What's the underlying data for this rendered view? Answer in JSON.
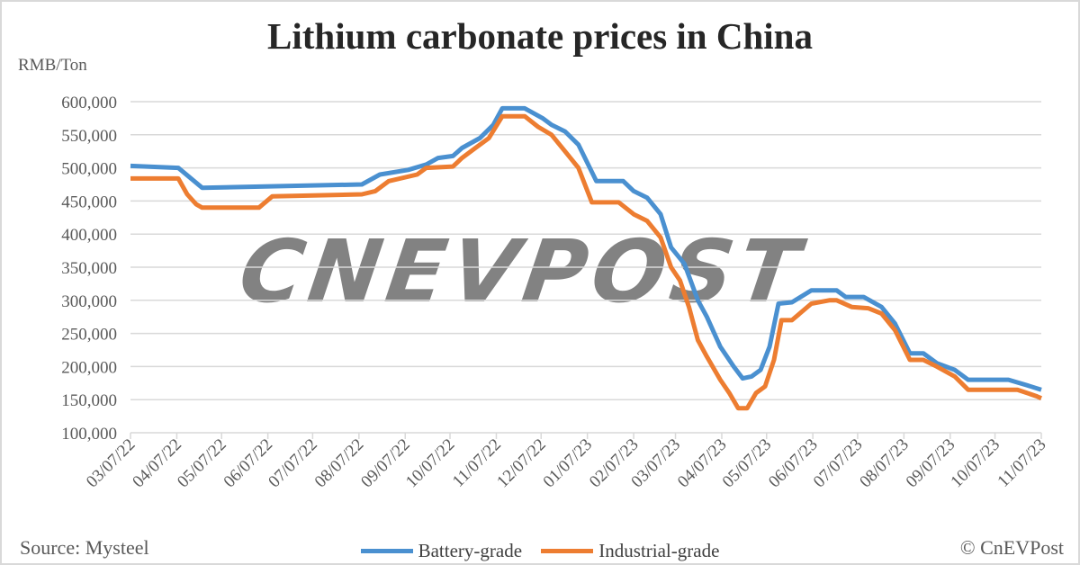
{
  "chart_data": {
    "type": "line",
    "title": "Lithium carbonate prices in China",
    "ylabel": "RMB/Ton",
    "ylim": [
      100000,
      600000
    ],
    "yticks": [
      "100,000",
      "150,000",
      "200,000",
      "250,000",
      "300,000",
      "350,000",
      "400,000",
      "450,000",
      "500,000",
      "550,000",
      "600,000"
    ],
    "ytick_values": [
      100000,
      150000,
      200000,
      250000,
      300000,
      350000,
      400000,
      450000,
      500000,
      550000,
      600000
    ],
    "xlim": [
      "2022-03-07",
      "2023-11-07"
    ],
    "xticks": [
      "03/07/22",
      "04/07/22",
      "05/07/22",
      "06/07/22",
      "07/07/22",
      "08/07/22",
      "09/07/22",
      "10/07/22",
      "11/07/22",
      "12/07/22",
      "01/07/23",
      "02/07/23",
      "03/07/23",
      "04/07/23",
      "05/07/23",
      "06/07/23",
      "07/07/23",
      "08/07/23",
      "09/07/23",
      "10/07/23",
      "11/07/23"
    ],
    "xtick_dates": [
      "2022-03-07",
      "2022-04-07",
      "2022-05-07",
      "2022-06-07",
      "2022-07-07",
      "2022-08-07",
      "2022-09-07",
      "2022-10-07",
      "2022-11-07",
      "2022-12-07",
      "2023-01-07",
      "2023-02-07",
      "2023-03-07",
      "2023-04-07",
      "2023-05-07",
      "2023-06-07",
      "2023-07-07",
      "2023-08-07",
      "2023-09-07",
      "2023-10-07",
      "2023-11-07"
    ],
    "grid": "horizontal",
    "legend_position": "bottom",
    "series": [
      {
        "name": "Battery-grade",
        "color": "#4a90d0",
        "points": [
          [
            "2022-03-07",
            503000
          ],
          [
            "2022-04-08",
            500000
          ],
          [
            "2022-04-24",
            470000
          ],
          [
            "2022-08-09",
            475000
          ],
          [
            "2022-08-21",
            490000
          ],
          [
            "2022-09-09",
            497000
          ],
          [
            "2022-09-21",
            505000
          ],
          [
            "2022-09-29",
            515000
          ],
          [
            "2022-10-09",
            518000
          ],
          [
            "2022-10-15",
            530000
          ],
          [
            "2022-10-27",
            545000
          ],
          [
            "2022-11-05",
            565000
          ],
          [
            "2022-11-11",
            590000
          ],
          [
            "2022-11-26",
            590000
          ],
          [
            "2022-12-08",
            575000
          ],
          [
            "2022-12-14",
            565000
          ],
          [
            "2022-12-23",
            555000
          ],
          [
            "2023-01-01",
            535000
          ],
          [
            "2023-01-13",
            480000
          ],
          [
            "2023-01-31",
            480000
          ],
          [
            "2023-02-07",
            465000
          ],
          [
            "2023-02-16",
            455000
          ],
          [
            "2023-02-25",
            430000
          ],
          [
            "2023-03-04",
            380000
          ],
          [
            "2023-03-13",
            355000
          ],
          [
            "2023-03-22",
            300000
          ],
          [
            "2023-03-28",
            275000
          ],
          [
            "2023-04-06",
            230000
          ],
          [
            "2023-04-15",
            200000
          ],
          [
            "2023-04-21",
            182000
          ],
          [
            "2023-04-27",
            185000
          ],
          [
            "2023-05-03",
            195000
          ],
          [
            "2023-05-09",
            230000
          ],
          [
            "2023-05-15",
            295000
          ],
          [
            "2023-05-24",
            297000
          ],
          [
            "2023-06-06",
            315000
          ],
          [
            "2023-06-23",
            315000
          ],
          [
            "2023-06-29",
            305000
          ],
          [
            "2023-07-11",
            305000
          ],
          [
            "2023-07-23",
            290000
          ],
          [
            "2023-08-01",
            265000
          ],
          [
            "2023-08-11",
            220000
          ],
          [
            "2023-08-20",
            220000
          ],
          [
            "2023-08-29",
            205000
          ],
          [
            "2023-09-10",
            195000
          ],
          [
            "2023-09-19",
            180000
          ],
          [
            "2023-10-16",
            180000
          ],
          [
            "2023-10-28",
            172000
          ],
          [
            "2023-11-07",
            165000
          ]
        ]
      },
      {
        "name": "Industrial-grade",
        "color": "#ed7d31",
        "points": [
          [
            "2022-03-07",
            484000
          ],
          [
            "2022-04-08",
            484000
          ],
          [
            "2022-04-14",
            460000
          ],
          [
            "2022-04-20",
            445000
          ],
          [
            "2022-04-24",
            440000
          ],
          [
            "2022-06-01",
            440000
          ],
          [
            "2022-06-10",
            457000
          ],
          [
            "2022-08-09",
            460000
          ],
          [
            "2022-08-18",
            465000
          ],
          [
            "2022-08-27",
            480000
          ],
          [
            "2022-09-15",
            490000
          ],
          [
            "2022-09-21",
            500000
          ],
          [
            "2022-10-09",
            502000
          ],
          [
            "2022-10-15",
            515000
          ],
          [
            "2022-10-24",
            530000
          ],
          [
            "2022-11-02",
            545000
          ],
          [
            "2022-11-11",
            578000
          ],
          [
            "2022-11-26",
            578000
          ],
          [
            "2022-12-05",
            562000
          ],
          [
            "2022-12-14",
            550000
          ],
          [
            "2022-12-23",
            525000
          ],
          [
            "2023-01-01",
            500000
          ],
          [
            "2023-01-10",
            448000
          ],
          [
            "2023-01-28",
            448000
          ],
          [
            "2023-02-07",
            430000
          ],
          [
            "2023-02-16",
            420000
          ],
          [
            "2023-02-25",
            395000
          ],
          [
            "2023-03-04",
            350000
          ],
          [
            "2023-03-10",
            330000
          ],
          [
            "2023-03-16",
            290000
          ],
          [
            "2023-03-22",
            240000
          ],
          [
            "2023-03-28",
            215000
          ],
          [
            "2023-04-06",
            180000
          ],
          [
            "2023-04-12",
            160000
          ],
          [
            "2023-04-18",
            137000
          ],
          [
            "2023-04-24",
            137000
          ],
          [
            "2023-04-30",
            160000
          ],
          [
            "2023-05-06",
            170000
          ],
          [
            "2023-05-12",
            210000
          ],
          [
            "2023-05-17",
            270000
          ],
          [
            "2023-05-24",
            270000
          ],
          [
            "2023-06-06",
            295000
          ],
          [
            "2023-06-18",
            300000
          ],
          [
            "2023-06-23",
            300000
          ],
          [
            "2023-07-03",
            290000
          ],
          [
            "2023-07-14",
            288000
          ],
          [
            "2023-07-23",
            280000
          ],
          [
            "2023-08-01",
            255000
          ],
          [
            "2023-08-11",
            210000
          ],
          [
            "2023-08-20",
            210000
          ],
          [
            "2023-08-29",
            200000
          ],
          [
            "2023-09-10",
            185000
          ],
          [
            "2023-09-19",
            165000
          ],
          [
            "2023-10-22",
            165000
          ],
          [
            "2023-11-04",
            155000
          ],
          [
            "2023-11-07",
            152000
          ]
        ]
      }
    ]
  },
  "footer": {
    "source": "Source: Mysteel",
    "credit": "© CnEVPost"
  },
  "watermark": {
    "text": "CNEVPOST",
    "color": "#b5d77a"
  }
}
